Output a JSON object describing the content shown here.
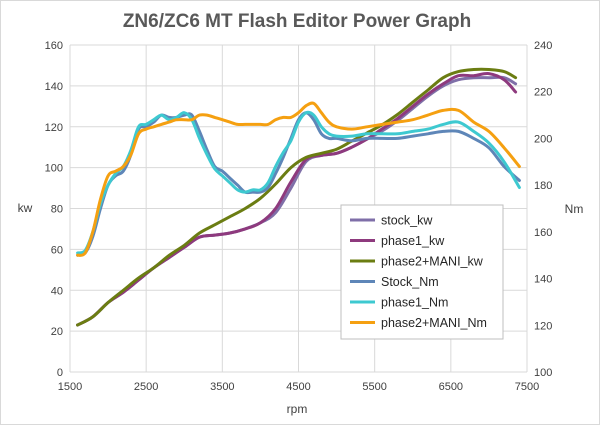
{
  "chart_data": {
    "type": "line",
    "title": "ZN6/ZC6 MT  Flash Editor Power Graph",
    "xlabel": "rpm",
    "ylabel_left": "kw",
    "ylabel_right": "Nm",
    "xlim": [
      1500,
      7500
    ],
    "xticks": [
      1500,
      2500,
      3500,
      4500,
      5500,
      6500,
      7500
    ],
    "ylim_left": [
      0,
      160
    ],
    "yticks_left": [
      0,
      20,
      40,
      60,
      80,
      100,
      120,
      140,
      160
    ],
    "ylim_right": [
      100,
      240
    ],
    "yticks_right": [
      100,
      120,
      140,
      160,
      180,
      200,
      220,
      240
    ],
    "grid": true,
    "legend_position": "bottom-right",
    "series": [
      {
        "name": "stock_kw",
        "axis": "left",
        "color": "#7f6fa8",
        "x": [
          1600,
          1800,
          2000,
          2200,
          2400,
          2600,
          2800,
          3000,
          3200,
          3400,
          3600,
          3800,
          4000,
          4200,
          4400,
          4600,
          4800,
          5000,
          5200,
          5400,
          5600,
          5800,
          6000,
          6200,
          6400,
          6600,
          6800,
          7000,
          7200,
          7350
        ],
        "y": [
          23,
          27,
          34,
          39,
          45,
          51,
          56,
          61,
          66,
          67,
          68,
          70,
          73,
          78,
          90,
          103,
          106,
          107,
          110,
          114,
          118,
          123,
          129,
          135,
          140,
          143,
          144,
          144,
          144,
          141
        ]
      },
      {
        "name": "phase1_kw",
        "axis": "left",
        "color": "#8e3a7e",
        "x": [
          1600,
          1800,
          2000,
          2200,
          2400,
          2600,
          2800,
          3000,
          3200,
          3400,
          3600,
          3800,
          4000,
          4200,
          4400,
          4600,
          4800,
          5000,
          5200,
          5400,
          5600,
          5800,
          6000,
          6200,
          6400,
          6600,
          6800,
          7000,
          7200,
          7350
        ],
        "y": [
          23,
          27,
          34,
          39,
          45,
          51,
          56,
          61,
          66,
          67,
          68,
          70,
          73,
          80,
          93,
          104,
          106,
          107,
          110,
          114,
          119,
          124,
          130,
          136,
          141,
          145,
          145,
          146,
          143,
          137
        ]
      },
      {
        "name": "phase2+MANI_kw",
        "axis": "left",
        "color": "#6b7d12",
        "x": [
          1600,
          1800,
          2000,
          2200,
          2400,
          2600,
          2800,
          3000,
          3200,
          3400,
          3600,
          3800,
          4000,
          4200,
          4400,
          4600,
          4800,
          5000,
          5200,
          5400,
          5600,
          5800,
          6000,
          6200,
          6400,
          6600,
          6800,
          7000,
          7200,
          7350
        ],
        "y": [
          23,
          27,
          34,
          40,
          46,
          51,
          57,
          62,
          68,
          72,
          76,
          80,
          85,
          92,
          100,
          105,
          107,
          109,
          113,
          117,
          121,
          126,
          132,
          138,
          144,
          147,
          148,
          148,
          147,
          144
        ]
      },
      {
        "name": "Stock_Nm",
        "axis": "right",
        "color": "#5e86b8",
        "x": [
          1600,
          1700,
          1800,
          1900,
          2000,
          2100,
          2200,
          2300,
          2400,
          2500,
          2600,
          2700,
          2800,
          2900,
          3000,
          3100,
          3200,
          3300,
          3400,
          3500,
          3600,
          3700,
          3800,
          3900,
          4000,
          4100,
          4200,
          4300,
          4400,
          4500,
          4600,
          4700,
          4800,
          4900,
          5000,
          5200,
          5400,
          5600,
          5800,
          6000,
          6200,
          6400,
          6600,
          6800,
          7000,
          7200,
          7400
        ],
        "y": [
          150,
          151,
          158,
          170,
          180,
          184,
          186,
          193,
          204,
          205,
          207,
          210,
          209,
          209,
          210,
          210,
          203,
          195,
          188,
          186,
          183,
          180,
          177,
          177,
          177,
          179,
          185,
          192,
          200,
          208,
          211,
          208,
          202,
          200,
          200,
          199,
          200,
          200,
          200,
          201,
          202,
          203,
          203,
          200,
          196,
          188,
          182
        ]
      },
      {
        "name": "phase1_Nm",
        "axis": "right",
        "color": "#3ec9d0",
        "x": [
          1600,
          1700,
          1800,
          1900,
          2000,
          2100,
          2200,
          2300,
          2400,
          2500,
          2600,
          2700,
          2800,
          2900,
          3000,
          3100,
          3200,
          3300,
          3400,
          3500,
          3600,
          3700,
          3800,
          3900,
          4000,
          4100,
          4200,
          4300,
          4400,
          4500,
          4600,
          4700,
          4800,
          4900,
          5000,
          5200,
          5400,
          5600,
          5800,
          6000,
          6200,
          6400,
          6600,
          6800,
          7000,
          7200,
          7400
        ],
        "y": [
          151,
          152,
          160,
          172,
          180,
          185,
          188,
          195,
          205,
          206,
          208,
          210,
          208,
          209,
          211,
          208,
          200,
          193,
          187,
          184,
          181,
          178,
          177,
          178,
          178,
          181,
          188,
          194,
          199,
          207,
          211,
          210,
          205,
          202,
          201,
          201,
          202,
          202,
          202,
          203,
          204,
          206,
          207,
          203,
          198,
          190,
          179
        ]
      },
      {
        "name": "phase2+MANI_Nm",
        "axis": "right",
        "color": "#f5a011",
        "x": [
          1600,
          1700,
          1800,
          1900,
          2000,
          2100,
          2200,
          2300,
          2400,
          2500,
          2600,
          2700,
          2800,
          2900,
          3000,
          3100,
          3200,
          3300,
          3400,
          3500,
          3600,
          3700,
          3800,
          3900,
          4000,
          4100,
          4200,
          4300,
          4400,
          4500,
          4600,
          4700,
          4800,
          4900,
          5000,
          5200,
          5400,
          5600,
          5800,
          6000,
          6200,
          6400,
          6600,
          6800,
          7000,
          7200,
          7400
        ],
        "y": [
          150,
          151,
          160,
          174,
          184,
          186,
          188,
          193,
          202,
          204,
          205,
          206,
          207,
          208,
          208,
          208,
          210,
          210,
          209,
          208,
          207,
          206,
          206,
          206,
          206,
          206,
          208,
          209,
          209,
          211,
          214,
          215,
          211,
          207,
          205,
          204,
          205,
          206,
          207,
          208,
          210,
          212,
          212,
          207,
          203,
          196,
          188
        ]
      }
    ]
  }
}
